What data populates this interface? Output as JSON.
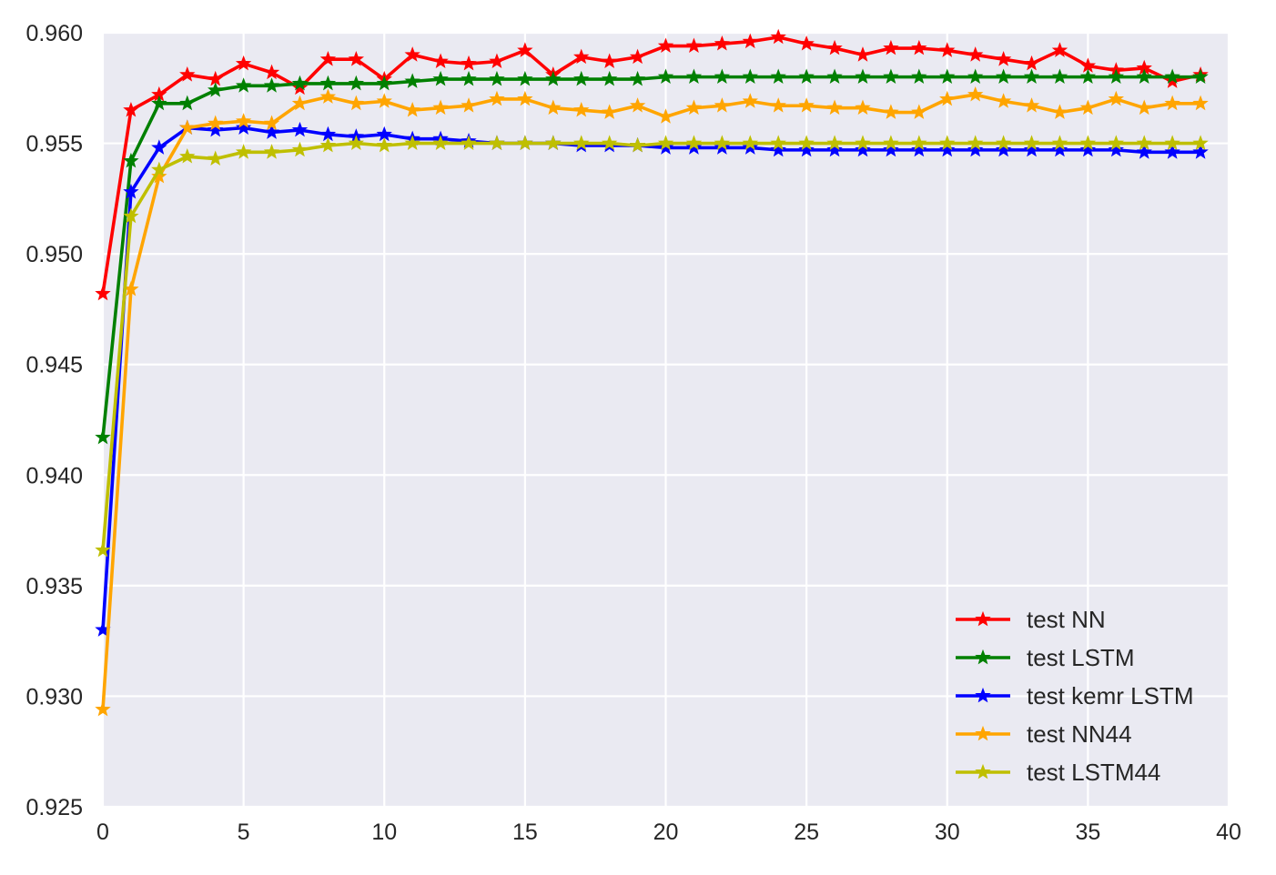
{
  "chart_data": {
    "type": "line",
    "title": "",
    "xlabel": "",
    "ylabel": "",
    "xlim": [
      0,
      40
    ],
    "ylim": [
      0.925,
      0.96
    ],
    "x_ticks": [
      "0",
      "5",
      "10",
      "15",
      "20",
      "25",
      "30",
      "35",
      "40"
    ],
    "y_ticks": [
      "0.925",
      "0.930",
      "0.935",
      "0.940",
      "0.945",
      "0.950",
      "0.955",
      "0.960"
    ],
    "grid": true,
    "legend_position": "bottom-right",
    "marker": "star",
    "x": [
      0,
      1,
      2,
      3,
      4,
      5,
      6,
      7,
      8,
      9,
      10,
      11,
      12,
      13,
      14,
      15,
      16,
      17,
      18,
      19,
      20,
      21,
      22,
      23,
      24,
      25,
      26,
      27,
      28,
      29,
      30,
      31,
      32,
      33,
      34,
      35,
      36,
      37,
      38,
      39
    ],
    "series": [
      {
        "name": "test NN",
        "color": "#ff0000",
        "values": [
          0.9482,
          0.9565,
          0.9572,
          0.9581,
          0.9579,
          0.9586,
          0.9582,
          0.9575,
          0.9588,
          0.9588,
          0.9579,
          0.959,
          0.9587,
          0.9586,
          0.9587,
          0.9592,
          0.9581,
          0.9589,
          0.9587,
          0.9589,
          0.9594,
          0.9594,
          0.9595,
          0.9596,
          0.9598,
          0.9595,
          0.9593,
          0.959,
          0.9593,
          0.9593,
          0.9592,
          0.959,
          0.9588,
          0.9586,
          0.9592,
          0.9585,
          0.9583,
          0.9584,
          0.9578,
          0.9581
        ]
      },
      {
        "name": "test LSTM",
        "color": "#008000",
        "values": [
          0.9417,
          0.9542,
          0.9568,
          0.9568,
          0.9574,
          0.9576,
          0.9576,
          0.9577,
          0.9577,
          0.9577,
          0.9577,
          0.9578,
          0.9579,
          0.9579,
          0.9579,
          0.9579,
          0.9579,
          0.9579,
          0.9579,
          0.9579,
          0.958,
          0.958,
          0.958,
          0.958,
          0.958,
          0.958,
          0.958,
          0.958,
          0.958,
          0.958,
          0.958,
          0.958,
          0.958,
          0.958,
          0.958,
          0.958,
          0.958,
          0.958,
          0.958,
          0.958
        ]
      },
      {
        "name": "test kemr LSTM",
        "color": "#0000ff",
        "values": [
          0.933,
          0.9528,
          0.9548,
          0.9557,
          0.9556,
          0.9557,
          0.9555,
          0.9556,
          0.9554,
          0.9553,
          0.9554,
          0.9552,
          0.9552,
          0.9551,
          0.955,
          0.955,
          0.955,
          0.9549,
          0.9549,
          0.9549,
          0.9548,
          0.9548,
          0.9548,
          0.9548,
          0.9547,
          0.9547,
          0.9547,
          0.9547,
          0.9547,
          0.9547,
          0.9547,
          0.9547,
          0.9547,
          0.9547,
          0.9547,
          0.9547,
          0.9547,
          0.9546,
          0.9546,
          0.9546
        ]
      },
      {
        "name": "test NN44",
        "color": "#ffa500",
        "values": [
          0.9294,
          0.9484,
          0.9535,
          0.9557,
          0.9559,
          0.956,
          0.9559,
          0.9568,
          0.9571,
          0.9568,
          0.9569,
          0.9565,
          0.9566,
          0.9567,
          0.957,
          0.957,
          0.9566,
          0.9565,
          0.9564,
          0.9567,
          0.9562,
          0.9566,
          0.9567,
          0.9569,
          0.9567,
          0.9567,
          0.9566,
          0.9566,
          0.9564,
          0.9564,
          0.957,
          0.9572,
          0.9569,
          0.9567,
          0.9564,
          0.9566,
          0.957,
          0.9566,
          0.9568,
          0.9568
        ]
      },
      {
        "name": "test LSTM44",
        "color": "#bfbf00",
        "values": [
          0.9366,
          0.9517,
          0.9538,
          0.9544,
          0.9543,
          0.9546,
          0.9546,
          0.9547,
          0.9549,
          0.955,
          0.9549,
          0.955,
          0.955,
          0.955,
          0.955,
          0.955,
          0.955,
          0.955,
          0.955,
          0.9549,
          0.955,
          0.955,
          0.955,
          0.955,
          0.955,
          0.955,
          0.955,
          0.955,
          0.955,
          0.955,
          0.955,
          0.955,
          0.955,
          0.955,
          0.955,
          0.955,
          0.955,
          0.955,
          0.955,
          0.955
        ]
      }
    ]
  }
}
